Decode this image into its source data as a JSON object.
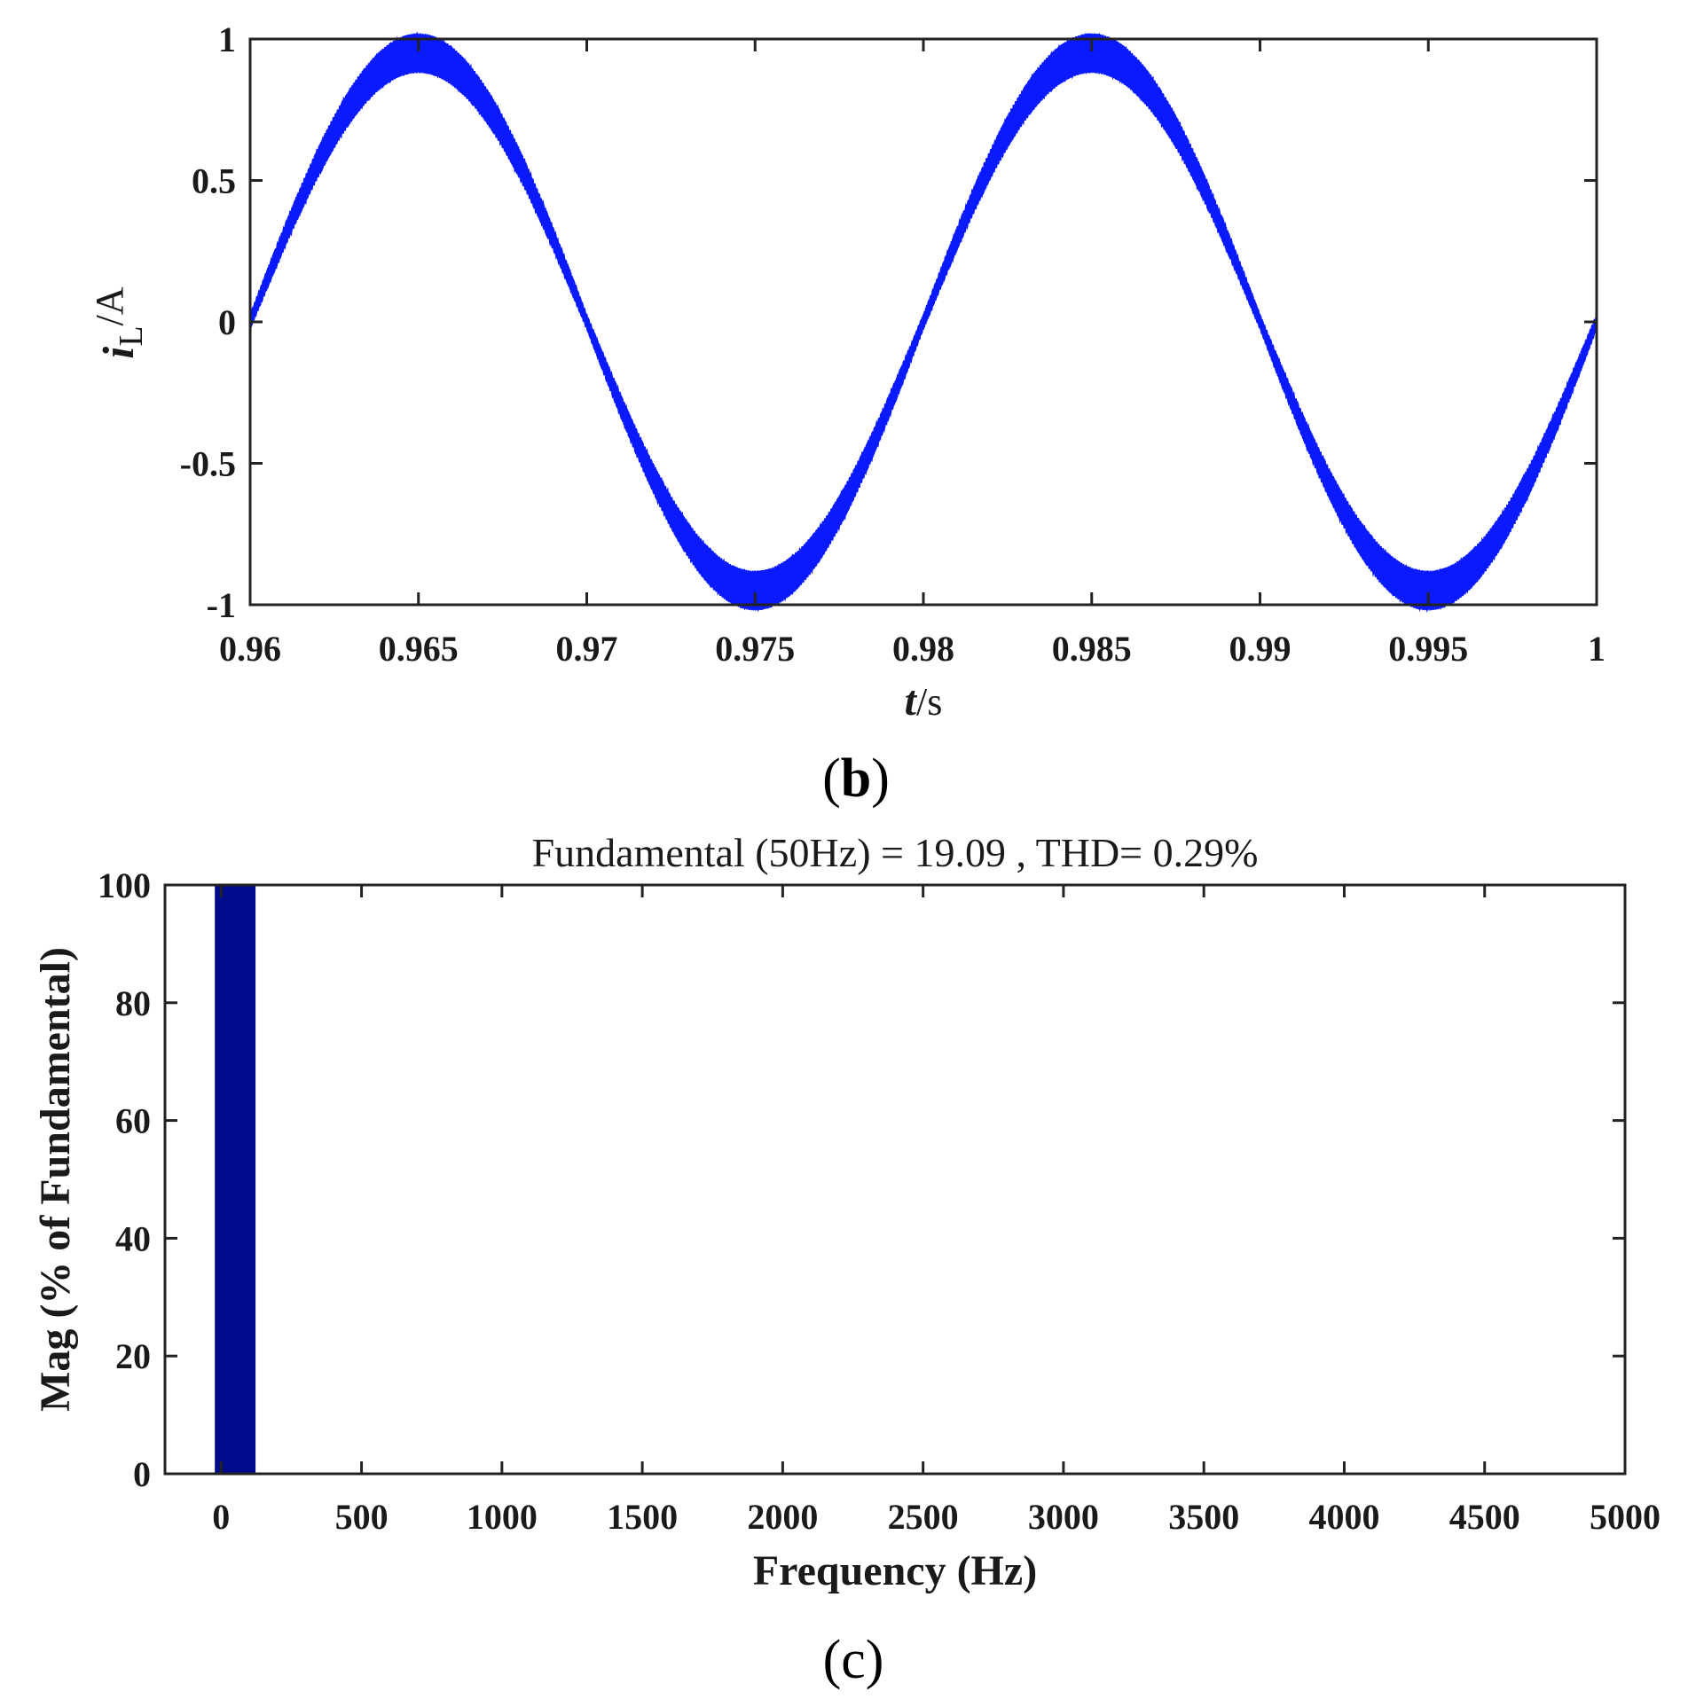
{
  "chart_data": [
    {
      "type": "line",
      "panel_label": "b",
      "title": "",
      "xlabel_var": "t",
      "xlabel_unit": "/s",
      "ylabel_var": "i",
      "ylabel_sub": "L",
      "ylabel_unit": "/A",
      "xlim": [
        0.96,
        1.0
      ],
      "ylim": [
        -1.0,
        1.0
      ],
      "x_ticks": [
        0.96,
        0.965,
        0.97,
        0.975,
        0.98,
        0.985,
        0.99,
        0.995,
        1.0
      ],
      "x_tick_labels": [
        "0.96",
        "0.965",
        "0.97",
        "0.975",
        "0.98",
        "0.985",
        "0.99",
        "0.995",
        "1"
      ],
      "y_ticks": [
        -1.0,
        -0.5,
        0.0,
        0.5,
        1.0
      ],
      "y_tick_labels": [
        "-1",
        "-0.5",
        "0",
        "0.5",
        "1"
      ],
      "series": [
        {
          "name": "i_L",
          "color": "#0a1aff",
          "function": "sine",
          "amplitude": 0.95,
          "frequency_hz": 50,
          "phase_zero_at": 0.96,
          "ripple_band": 0.07,
          "x_start": 0.96,
          "x_end": 1.0
        }
      ]
    },
    {
      "type": "bar",
      "panel_label": "c",
      "title": "Fundamental (50Hz) = 19.09 , THD= 0.29%",
      "xlabel": "Frequency (Hz)",
      "ylabel": "Mag (% of Fundamental)",
      "xlim": [
        -200,
        5000
      ],
      "ylim": [
        0,
        100
      ],
      "x_ticks": [
        0,
        500,
        1000,
        1500,
        2000,
        2500,
        3000,
        3500,
        4000,
        4500,
        5000
      ],
      "x_tick_labels": [
        "0",
        "500",
        "1000",
        "1500",
        "2000",
        "2500",
        "3000",
        "3500",
        "4000",
        "4500",
        "5000"
      ],
      "y_ticks": [
        0,
        20,
        40,
        60,
        80,
        100
      ],
      "y_tick_labels": [
        "0",
        "20",
        "40",
        "60",
        "80",
        "100"
      ],
      "bars": [
        {
          "frequency": 50,
          "value": 100,
          "width_hz": 145,
          "center_hz": 50
        }
      ],
      "bar_color": "#000b8c"
    }
  ]
}
